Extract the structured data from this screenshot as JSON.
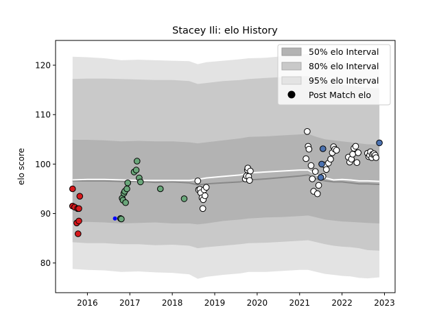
{
  "chart_data": {
    "type": "line",
    "title": "Stacey Ili: elo History",
    "xlabel": "",
    "ylabel": "elo score",
    "xlim": [
      2015.25,
      2023.25
    ],
    "ylim": [
      74,
      125
    ],
    "x_ticks": [
      2016,
      2017,
      2018,
      2019,
      2020,
      2021,
      2022,
      2023
    ],
    "x_tick_labels": [
      "2016",
      "2017",
      "2018",
      "2019",
      "2020",
      "2021",
      "2022",
      "2023"
    ],
    "y_ticks": [
      80,
      90,
      100,
      110,
      120
    ],
    "y_tick_labels": [
      "80",
      "90",
      "100",
      "110",
      "120"
    ],
    "grid": false,
    "legend_position": "top-right",
    "colors": {
      "band_50": "#b3b3b3",
      "band_80": "#c9c9c9",
      "band_95": "#e3e3e3",
      "median_line": "#888888",
      "mean_line": "#ffffff"
    },
    "legend": [
      {
        "label": "50% elo Interval",
        "swatch": "band_50"
      },
      {
        "label": "80% elo Interval",
        "swatch": "band_80"
      },
      {
        "label": "95% elo Interval",
        "swatch": "band_95"
      },
      {
        "label": "Post Match elo",
        "swatch": "marker"
      }
    ],
    "bands": {
      "x": [
        2015.65,
        2016.0,
        2016.4,
        2016.8,
        2017.2,
        2017.6,
        2018.0,
        2018.4,
        2018.6,
        2018.8,
        2019.2,
        2019.6,
        2019.8,
        2020.2,
        2020.6,
        2021.0,
        2021.2,
        2021.4,
        2021.6,
        2021.8,
        2022.0,
        2022.2,
        2022.4,
        2022.6,
        2022.88
      ],
      "median": [
        96.6,
        96.6,
        96.6,
        96.5,
        96.5,
        96.3,
        96.4,
        96.2,
        95.8,
        96.0,
        96.2,
        96.4,
        96.8,
        97.0,
        97.3,
        97.6,
        97.8,
        97.0,
        96.6,
        96.4,
        96.4,
        96.2,
        96.0,
        96.0,
        95.9
      ],
      "mean": [
        96.8,
        96.9,
        96.9,
        96.8,
        96.7,
        96.7,
        96.7,
        96.7,
        96.9,
        97.2,
        97.5,
        97.8,
        98.2,
        98.4,
        98.6,
        98.8,
        98.8,
        97.8,
        97.2,
        96.8,
        96.9,
        96.8,
        96.6,
        96.6,
        96.5
      ],
      "p50_low": [
        88.3,
        88.3,
        88.2,
        88.0,
        88.1,
        88.2,
        88.0,
        88.0,
        87.8,
        88.0,
        88.5,
        88.8,
        89.0,
        89.2,
        89.3,
        89.5,
        89.6,
        89.2,
        88.8,
        88.6,
        88.4,
        88.3,
        88.2,
        88.1,
        88.0
      ],
      "p50_high": [
        104.9,
        104.9,
        104.8,
        104.6,
        104.7,
        104.6,
        104.6,
        104.4,
        104.2,
        104.4,
        104.8,
        105.2,
        105.5,
        105.6,
        105.8,
        106.0,
        106.1,
        105.5,
        105.0,
        104.8,
        104.6,
        104.4,
        104.2,
        104.0,
        104.0
      ],
      "p80_low": [
        84.2,
        84.0,
        84.0,
        83.8,
        83.8,
        83.6,
        83.7,
        83.5,
        83.0,
        83.2,
        83.5,
        83.8,
        84.0,
        84.1,
        84.3,
        84.5,
        84.6,
        84.2,
        83.8,
        83.5,
        83.3,
        83.2,
        83.0,
        82.6,
        82.5
      ],
      "p80_high": [
        117.2,
        117.3,
        117.3,
        117.2,
        117.1,
        117.0,
        117.0,
        116.8,
        116.2,
        116.4,
        116.8,
        117.0,
        117.2,
        117.4,
        117.6,
        117.8,
        117.8,
        117.2,
        116.5,
        116.0,
        116.0,
        115.9,
        115.6,
        115.4,
        115.3
      ],
      "p95_low": [
        78.8,
        78.6,
        78.5,
        78.2,
        78.3,
        78.1,
        78.0,
        77.7,
        76.8,
        77.2,
        77.6,
        77.9,
        78.2,
        78.2,
        78.4,
        78.6,
        78.6,
        78.2,
        77.8,
        77.6,
        77.4,
        77.3,
        77.0,
        76.9,
        77.1
      ],
      "p95_high": [
        121.7,
        121.6,
        121.4,
        121.0,
        121.1,
        121.0,
        120.9,
        120.8,
        120.2,
        120.6,
        120.9,
        121.2,
        121.4,
        121.5,
        121.8,
        122.1,
        122.3,
        121.7,
        121.0,
        120.7,
        120.5,
        120.4,
        120.2,
        120.1,
        120.0
      ]
    },
    "point_groups": [
      {
        "color": "#d7191c",
        "points": [
          [
            2015.65,
            95.0
          ],
          [
            2015.65,
            91.5
          ],
          [
            2015.7,
            91.3
          ],
          [
            2015.75,
            88.1
          ],
          [
            2015.77,
            91.0
          ],
          [
            2015.78,
            85.9
          ],
          [
            2015.8,
            88.5
          ],
          [
            2015.82,
            93.5
          ],
          [
            2015.8,
            91.0
          ]
        ]
      },
      {
        "color": "#0000ff",
        "points": [
          [
            2016.65,
            89.0
          ]
        ],
        "small": true
      },
      {
        "color": "#6aa67a",
        "points": [
          [
            2016.78,
            89.0
          ],
          [
            2016.8,
            88.9
          ],
          [
            2016.82,
            93.1
          ],
          [
            2016.84,
            92.7
          ],
          [
            2016.86,
            94.1
          ],
          [
            2016.88,
            94.5
          ],
          [
            2016.9,
            92.2
          ],
          [
            2016.93,
            95.0
          ],
          [
            2016.95,
            96.2
          ],
          [
            2017.1,
            98.4
          ],
          [
            2017.15,
            98.8
          ],
          [
            2017.17,
            100.6
          ],
          [
            2017.22,
            97.2
          ],
          [
            2017.25,
            96.4
          ],
          [
            2017.72,
            95.0
          ],
          [
            2018.28,
            93.0
          ]
        ]
      },
      {
        "color": "#ffffff",
        "points": [
          [
            2018.6,
            96.6
          ],
          [
            2018.62,
            94.8
          ],
          [
            2018.65,
            94.9
          ],
          [
            2018.67,
            94.2
          ],
          [
            2018.7,
            93.2
          ],
          [
            2018.72,
            91.0
          ],
          [
            2018.73,
            92.8
          ],
          [
            2018.75,
            94.8
          ],
          [
            2018.77,
            93.6
          ],
          [
            2018.8,
            95.3
          ],
          [
            2019.72,
            97.0
          ],
          [
            2019.75,
            97.6
          ],
          [
            2019.77,
            98.8
          ],
          [
            2019.78,
            99.2
          ],
          [
            2019.8,
            97.5
          ],
          [
            2019.82,
            96.7
          ],
          [
            2019.84,
            98.6
          ],
          [
            2021.15,
            101.1
          ],
          [
            2021.18,
            106.6
          ],
          [
            2021.2,
            103.6
          ],
          [
            2021.22,
            103.0
          ],
          [
            2021.27,
            99.7
          ],
          [
            2021.3,
            97.0
          ],
          [
            2021.33,
            94.5
          ],
          [
            2021.37,
            98.5
          ],
          [
            2021.42,
            94.0
          ],
          [
            2021.45,
            95.7
          ],
          [
            2021.55,
            97.5
          ],
          [
            2021.6,
            99.8
          ],
          [
            2021.63,
            98.9
          ],
          [
            2021.68,
            100.2
          ],
          [
            2021.73,
            101.0
          ],
          [
            2021.77,
            102.3
          ],
          [
            2021.8,
            103.5
          ],
          [
            2021.83,
            103.0
          ],
          [
            2021.87,
            102.8
          ],
          [
            2022.15,
            101.4
          ],
          [
            2022.18,
            100.4
          ],
          [
            2022.22,
            101.0
          ],
          [
            2022.25,
            102.0
          ],
          [
            2022.28,
            103.2
          ],
          [
            2022.32,
            103.6
          ],
          [
            2022.35,
            100.3
          ],
          [
            2022.38,
            102.3
          ],
          [
            2022.6,
            102.2
          ],
          [
            2022.63,
            101.5
          ],
          [
            2022.65,
            101.8
          ],
          [
            2022.67,
            102.5
          ],
          [
            2022.7,
            101.3
          ],
          [
            2022.72,
            102.0
          ],
          [
            2022.75,
            102.1
          ],
          [
            2022.78,
            101.8
          ],
          [
            2022.8,
            101.3
          ]
        ]
      },
      {
        "color": "#4c72b0",
        "points": [
          [
            2021.52,
            100.0
          ],
          [
            2021.55,
            103.1
          ],
          [
            2021.5,
            97.3
          ],
          [
            2022.88,
            104.3
          ]
        ]
      }
    ]
  }
}
